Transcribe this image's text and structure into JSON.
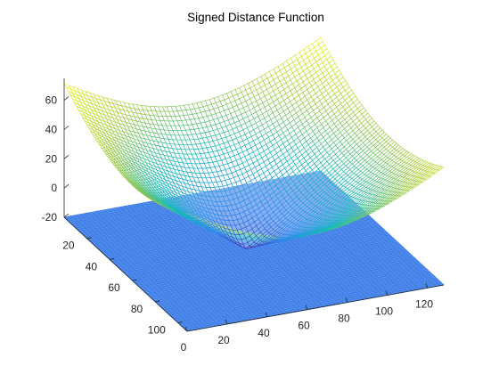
{
  "chart_data": {
    "type": "surface",
    "title": "Signed Distance Function",
    "xlabel": "",
    "ylabel": "",
    "zlabel": "",
    "x_ticks": [
      "0",
      "20",
      "40",
      "60",
      "80",
      "100",
      "120"
    ],
    "y_ticks": [
      "20",
      "40",
      "60",
      "80",
      "100"
    ],
    "z_ticks": [
      "60",
      "40",
      "20",
      "0",
      "-20"
    ],
    "xlim": [
      0,
      128
    ],
    "ylim": [
      0,
      108
    ],
    "zlim": [
      -20,
      75
    ],
    "grid": false,
    "colormap": "parula",
    "series": [
      {
        "kind": "mesh-surface",
        "description_values": {
          "zero_level_circle_center": [
            60,
            54
          ],
          "zero_level_circle_radius": 20,
          "min_z": -18,
          "corner_z_near": 60,
          "corner_z_far": 73,
          "corner_z_right": 22
        }
      },
      {
        "kind": "flat-plane",
        "z": -20,
        "color": "#3d7ee8"
      }
    ],
    "colors": {
      "parula_low": "#3e26a8",
      "parula_mid_low": "#2c87f0",
      "parula_mid": "#15b9bb",
      "parula_mid_high": "#9fca3f",
      "parula_high": "#f9fa14",
      "plane": "#3d7ee8"
    }
  }
}
